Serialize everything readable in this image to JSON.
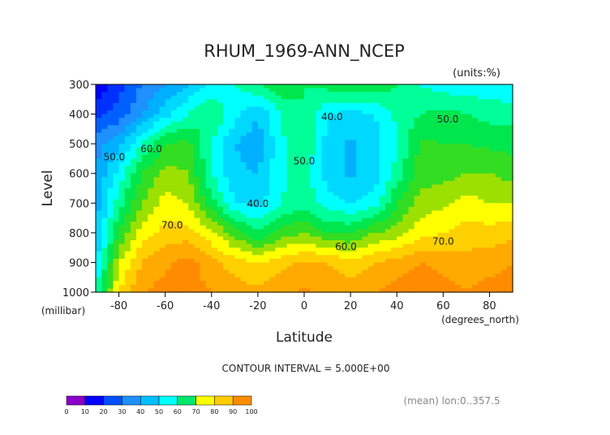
{
  "chart_data": {
    "type": "heatmap",
    "title": "RHUM_1969-ANN_NCEP",
    "units_label": "(units:%)",
    "xlabel": "Latitude",
    "xunits_label": "(degrees_north)",
    "ylabel": "Level",
    "yunits_label": "(millibar)",
    "xlim": [
      -90,
      90
    ],
    "ylim": [
      1000,
      300
    ],
    "x_ticks": [
      -80,
      -60,
      -40,
      -20,
      0,
      20,
      40,
      60,
      80
    ],
    "y_ticks": [
      300,
      400,
      500,
      600,
      700,
      800,
      900,
      1000
    ],
    "contour_interval_text": "CONTOUR INTERVAL = 5.000E+00",
    "mean_text": "(mean) lon:0..357.5",
    "contour_labels": [
      {
        "text": "50.0",
        "x": -82,
        "y": 555
      },
      {
        "text": "60.0",
        "x": -66,
        "y": 528
      },
      {
        "text": "70.0",
        "x": -57,
        "y": 785
      },
      {
        "text": "40.0",
        "x": -20,
        "y": 713
      },
      {
        "text": "50.0",
        "x": 0,
        "y": 570
      },
      {
        "text": "40.0",
        "x": 12,
        "y": 420
      },
      {
        "text": "60.0",
        "x": 18,
        "y": 858
      },
      {
        "text": "50.0",
        "x": 62,
        "y": 428
      },
      {
        "text": "70.0",
        "x": 60,
        "y": 840
      }
    ],
    "x": [
      -90,
      -80,
      -70,
      -60,
      -50,
      -40,
      -30,
      -20,
      -10,
      0,
      10,
      20,
      30,
      40,
      50,
      60,
      70,
      80,
      90
    ],
    "y": [
      300,
      400,
      500,
      600,
      700,
      800,
      900,
      1000
    ],
    "z": [
      [
        10,
        18,
        25,
        30,
        35,
        40,
        45,
        50,
        54,
        50,
        52,
        55,
        54,
        50,
        45,
        42,
        42,
        42,
        40
      ],
      [
        18,
        22,
        30,
        38,
        45,
        50,
        42,
        35,
        45,
        50,
        40,
        38,
        40,
        46,
        50,
        52,
        50,
        48,
        48
      ],
      [
        28,
        33,
        45,
        55,
        57,
        45,
        35,
        32,
        44,
        50,
        38,
        34,
        37,
        45,
        56,
        55,
        55,
        54,
        53
      ],
      [
        30,
        42,
        55,
        62,
        60,
        45,
        36,
        35,
        44,
        48,
        38,
        34,
        37,
        47,
        57,
        58,
        60,
        60,
        58
      ],
      [
        32,
        48,
        60,
        67,
        65,
        52,
        40,
        38,
        45,
        48,
        42,
        40,
        42,
        55,
        62,
        64,
        67,
        65,
        65
      ],
      [
        35,
        55,
        67,
        72,
        72,
        66,
        58,
        50,
        57,
        60,
        55,
        54,
        60,
        62,
        68,
        70,
        72,
        72,
        73
      ],
      [
        38,
        65,
        75,
        79,
        82,
        77,
        72,
        70,
        73,
        76,
        75,
        72,
        75,
        77,
        80,
        78,
        77,
        78,
        80
      ],
      [
        45,
        70,
        80,
        82,
        82,
        80,
        78,
        76,
        79,
        81,
        79,
        77,
        80,
        82,
        84,
        82,
        80,
        82,
        82
      ]
    ],
    "colorbar": {
      "levels": [
        0,
        10,
        20,
        30,
        40,
        50,
        60,
        70,
        80,
        90,
        100
      ],
      "colors": [
        "#8a00c8",
        "#0000ff",
        "#0050ff",
        "#1e90ff",
        "#00bfff",
        "#00ffff",
        "#00e66e",
        "#33dd22",
        "#ffff00",
        "#ffcc00",
        "#ff8c00",
        "#ff5000",
        "#ff0000"
      ]
    }
  }
}
